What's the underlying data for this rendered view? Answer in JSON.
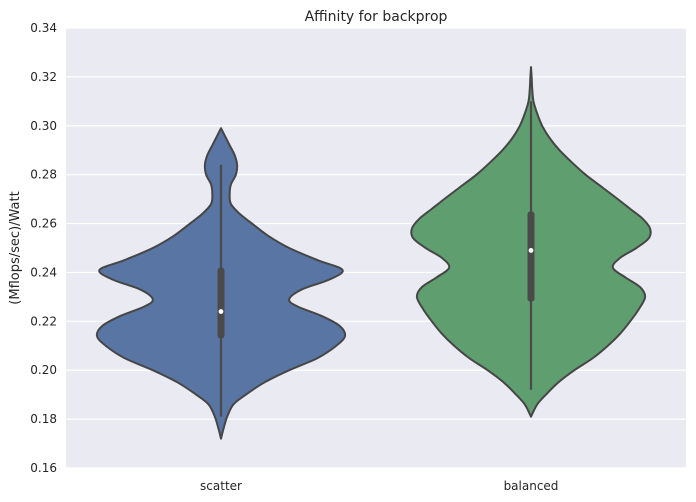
{
  "chart_data": {
    "type": "violin",
    "title": "Affinity for backprop",
    "xlabel": "",
    "ylabel": "(Mflops/sec)/Watt",
    "ylim": [
      0.16,
      0.34
    ],
    "yticks": [
      "0.16",
      "0.18",
      "0.20",
      "0.22",
      "0.24",
      "0.26",
      "0.28",
      "0.30",
      "0.32",
      "0.34"
    ],
    "grid": true,
    "background": "#EAEAF2",
    "categories": [
      "scatter",
      "balanced"
    ],
    "series": [
      {
        "category": "scatter",
        "color": "#5975A4",
        "median": 0.224,
        "q1": 0.213,
        "q3": 0.242,
        "whisker_low": 0.181,
        "whisker_high": 0.284,
        "density_y": [
          0.172,
          0.176,
          0.181,
          0.186,
          0.19,
          0.195,
          0.2,
          0.205,
          0.21,
          0.214,
          0.218,
          0.222,
          0.226,
          0.229,
          0.233,
          0.237,
          0.241,
          0.245,
          0.25,
          0.255,
          0.26,
          0.264,
          0.268,
          0.272,
          0.276,
          0.28,
          0.284,
          0.288,
          0.292,
          0.296,
          0.299
        ],
        "density_w": [
          0.0,
          0.02,
          0.05,
          0.1,
          0.2,
          0.35,
          0.55,
          0.78,
          0.93,
          1.0,
          0.96,
          0.82,
          0.62,
          0.55,
          0.65,
          0.87,
          0.98,
          0.78,
          0.55,
          0.38,
          0.25,
          0.15,
          0.08,
          0.07,
          0.08,
          0.12,
          0.13,
          0.11,
          0.07,
          0.03,
          0.0
        ]
      },
      {
        "category": "balanced",
        "color": "#5F9E6E",
        "median": 0.249,
        "q1": 0.228,
        "q3": 0.265,
        "whisker_low": 0.192,
        "whisker_high": 0.31,
        "density_y": [
          0.181,
          0.186,
          0.19,
          0.195,
          0.2,
          0.205,
          0.21,
          0.215,
          0.22,
          0.225,
          0.23,
          0.234,
          0.238,
          0.242,
          0.246,
          0.25,
          0.254,
          0.258,
          0.262,
          0.266,
          0.27,
          0.275,
          0.28,
          0.285,
          0.29,
          0.295,
          0.3,
          0.305,
          0.31,
          0.315,
          0.32,
          0.324
        ],
        "density_w": [
          0.0,
          0.05,
          0.12,
          0.22,
          0.35,
          0.5,
          0.62,
          0.72,
          0.8,
          0.87,
          0.92,
          0.88,
          0.76,
          0.66,
          0.72,
          0.85,
          0.95,
          0.96,
          0.9,
          0.8,
          0.7,
          0.57,
          0.44,
          0.33,
          0.23,
          0.15,
          0.09,
          0.05,
          0.02,
          0.01,
          0.005,
          0.0
        ]
      }
    ]
  }
}
